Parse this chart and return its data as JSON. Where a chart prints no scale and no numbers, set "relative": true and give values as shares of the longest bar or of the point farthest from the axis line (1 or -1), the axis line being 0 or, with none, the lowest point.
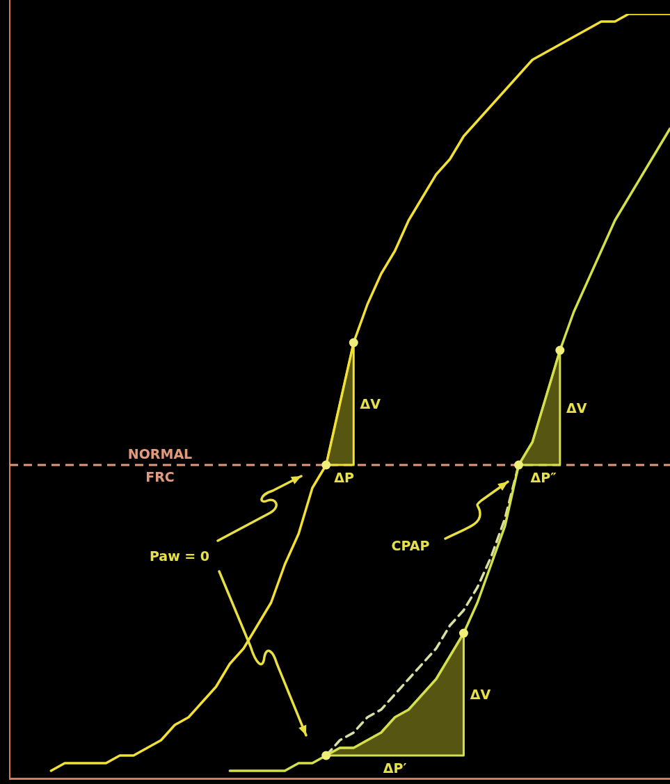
{
  "chart_data": {
    "type": "line",
    "relative": true,
    "tick_labels": false,
    "marker": "none",
    "categories": [
      null,
      null,
      null,
      null,
      null,
      null,
      null,
      null,
      null,
      null,
      null,
      null,
      null,
      null,
      null,
      null,
      null,
      null,
      null,
      null,
      null,
      null,
      null,
      null,
      null,
      null,
      null,
      null,
      null,
      null,
      null,
      null,
      null,
      null,
      null,
      null,
      null,
      null,
      null,
      null,
      null,
      null,
      null,
      null,
      null,
      null,
      null,
      null,
      null
    ],
    "series": [
      {
        "color": "#f2e034",
        "values": [
          null,
          null,
          null,
          0.01,
          0.02,
          0.02,
          0.02,
          0.02,
          0.03,
          0.03,
          0.04,
          0.05,
          0.07,
          0.08,
          0.1,
          0.12,
          0.15,
          0.17,
          0.2,
          0.23,
          0.28,
          0.32,
          0.38,
          0.41,
          0.49,
          0.57,
          0.62,
          0.66,
          0.69,
          0.73,
          0.76,
          0.79,
          0.81,
          0.84,
          0.86,
          0.88,
          0.9,
          0.92,
          0.94,
          0.95,
          0.96,
          0.97,
          0.98,
          0.99,
          0.99,
          1.0,
          1.0,
          1.0,
          1.0
        ]
      },
      {
        "color": "#d4e04a",
        "values": [
          null,
          null,
          null,
          null,
          null,
          null,
          null,
          null,
          null,
          null,
          null,
          null,
          null,
          null,
          null,
          null,
          0.01,
          0.01,
          0.01,
          0.01,
          0.01,
          0.02,
          0.02,
          0.03,
          0.04,
          0.04,
          0.05,
          0.06,
          0.08,
          0.09,
          0.11,
          0.13,
          0.16,
          0.19,
          0.23,
          0.28,
          0.33,
          0.41,
          0.44,
          0.5,
          0.56,
          0.61,
          0.65,
          0.69,
          0.73,
          0.76,
          0.79,
          0.82,
          0.85
        ]
      },
      {
        "color": "#d8e0a0",
        "line_style": "dashed",
        "values": [
          null,
          null,
          null,
          null,
          null,
          null,
          null,
          null,
          null,
          null,
          null,
          null,
          null,
          null,
          null,
          null,
          null,
          null,
          null,
          null,
          null,
          null,
          null,
          0.03,
          0.05,
          0.06,
          0.08,
          0.09,
          0.11,
          0.13,
          0.15,
          0.17,
          0.2,
          0.22,
          0.25,
          0.29,
          0.34,
          0.41,
          null,
          null,
          null,
          null,
          null,
          null,
          null,
          null,
          null,
          null,
          null
        ]
      }
    ],
    "ref_lines": [
      {
        "axis": "y",
        "value": 0.41,
        "label": "NORMAL FRC",
        "color": "#e29a7c",
        "line_style": "dashed"
      }
    ],
    "annotations": [
      "ΔV",
      "ΔP",
      "ΔV",
      "ΔP″",
      "ΔV",
      "ΔP′",
      "Paw = 0",
      "CPAP"
    ]
  }
}
